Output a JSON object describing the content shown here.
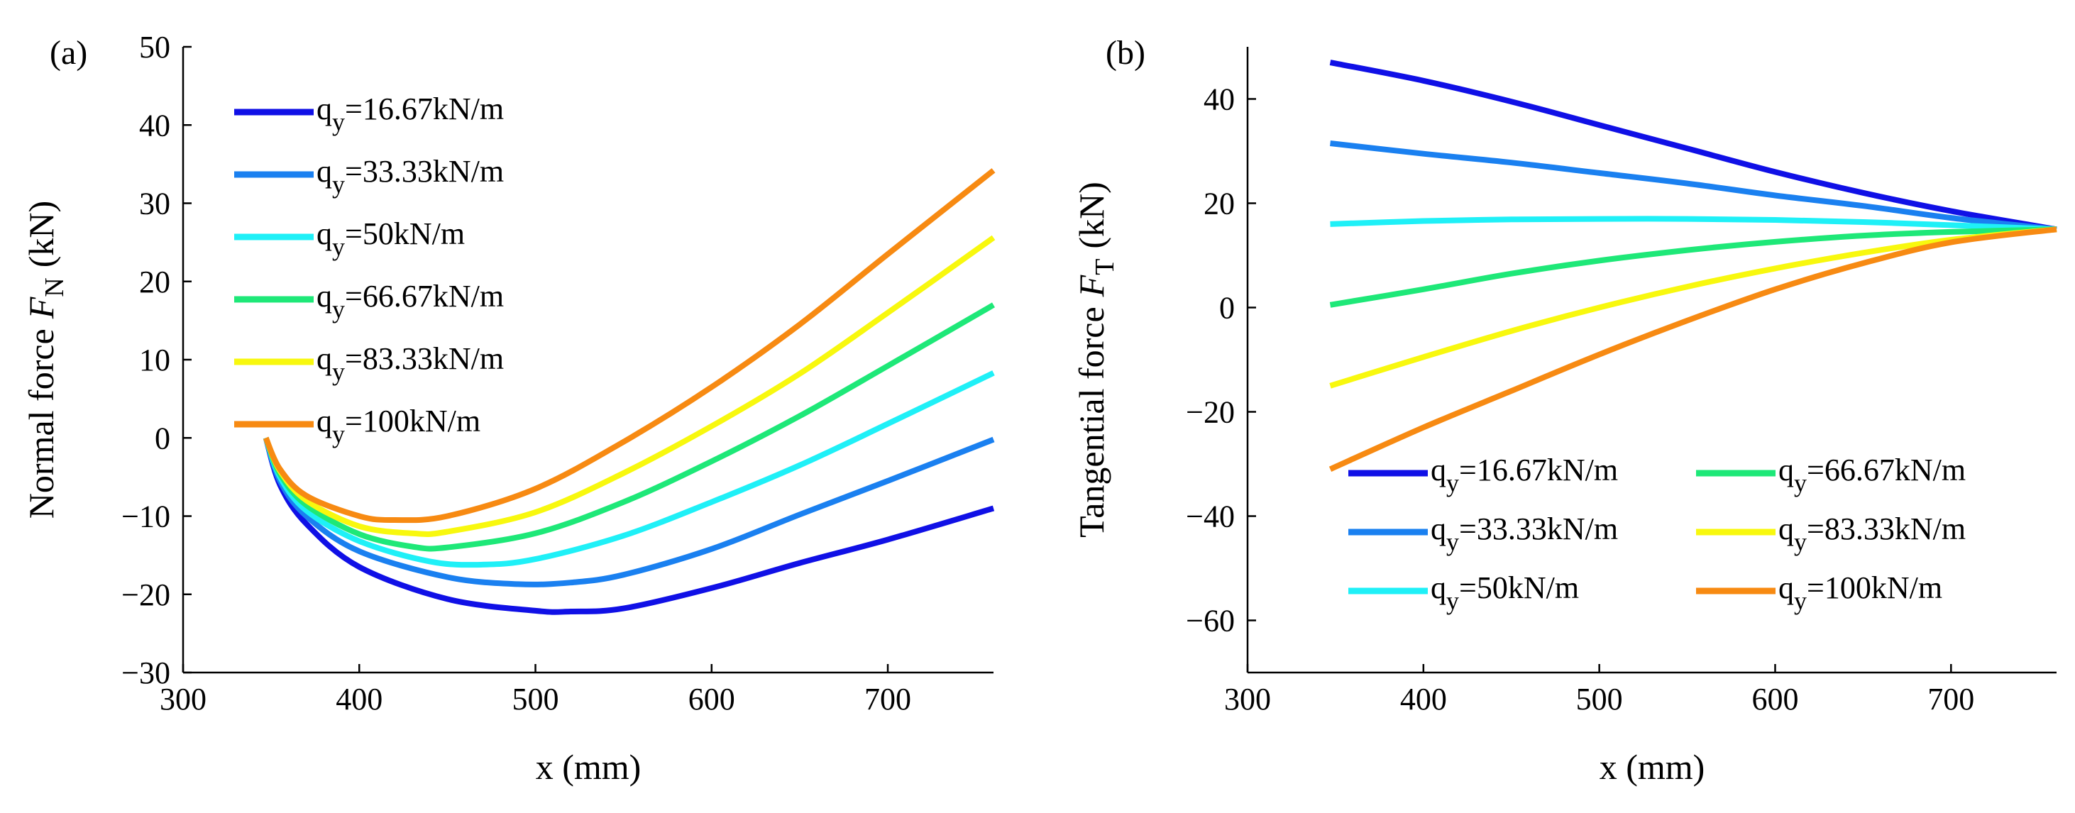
{
  "colors": [
    "#1010e6",
    "#1a80f0",
    "#1ff0f7",
    "#1ee878",
    "#f8f80e",
    "#f78a12"
  ],
  "chart_data": [
    {
      "type": "line",
      "panel": "(a)",
      "title": "",
      "xlabel": "x (mm)",
      "ylabel": "Normal force",
      "ylabel_symbol": "F",
      "ylabel_subscript": "N",
      "ylabel_unit": "(kN)",
      "xlim": [
        300,
        760
      ],
      "ylim": [
        -30,
        50
      ],
      "xticks": [
        300,
        400,
        500,
        600,
        700
      ],
      "yticks": [
        -30,
        -20,
        -10,
        0,
        10,
        20,
        30,
        40,
        50
      ],
      "tick_labels_x": [
        "300",
        "400",
        "500",
        "600",
        "700"
      ],
      "tick_labels_y": [
        "−30",
        "−20",
        "−10",
        "0",
        "10",
        "20",
        "30",
        "40",
        "50"
      ],
      "legend": "top-left, single column",
      "series": [
        {
          "name": "q_y=16.67kN/m",
          "label_main": "q",
          "label_sub": "y",
          "label_rest": "=16.67kN/m",
          "x": [
            347,
            355,
            370,
            400,
            450,
            500,
            520,
            550,
            600,
            650,
            700,
            760
          ],
          "y": [
            0,
            -6,
            -11,
            -16.5,
            -20.6,
            -22.1,
            -22.2,
            -21.8,
            -19.2,
            -16,
            -13,
            -9
          ]
        },
        {
          "name": "q_y=33.33kN/m",
          "label_main": "q",
          "label_sub": "y",
          "label_rest": "=33.33kN/m",
          "x": [
            347,
            355,
            370,
            400,
            450,
            490,
            520,
            550,
            600,
            650,
            700,
            760
          ],
          "y": [
            0,
            -5.5,
            -10,
            -14.5,
            -17.8,
            -18.7,
            -18.5,
            -17.5,
            -14.2,
            -9.8,
            -5.5,
            -0.2
          ]
        },
        {
          "name": "q_y=50kN/m",
          "label_main": "q",
          "label_sub": "y",
          "label_rest": "=50kN/m",
          "x": [
            347,
            355,
            370,
            400,
            440,
            470,
            500,
            550,
            600,
            650,
            700,
            760
          ],
          "y": [
            0,
            -5,
            -9.3,
            -13.2,
            -15.8,
            -16.2,
            -15.5,
            -12.5,
            -8.2,
            -3.5,
            1.8,
            8.3
          ]
        },
        {
          "name": "q_y=66.67kN/m",
          "label_main": "q",
          "label_sub": "y",
          "label_rest": "=66.67kN/m",
          "x": [
            347,
            355,
            370,
            400,
            430,
            450,
            500,
            550,
            600,
            650,
            700,
            760
          ],
          "y": [
            0,
            -4.6,
            -8.6,
            -12.3,
            -13.9,
            -14,
            -12.2,
            -8.2,
            -3,
            2.8,
            9.2,
            17
          ]
        },
        {
          "name": "q_y=83.33kN/m",
          "label_main": "q",
          "label_sub": "y",
          "label_rest": "=83.33kN/m",
          "x": [
            347,
            355,
            370,
            400,
            430,
            450,
            500,
            550,
            600,
            650,
            700,
            760
          ],
          "y": [
            0,
            -4.2,
            -8,
            -11.3,
            -12.2,
            -12,
            -9.5,
            -4.5,
            1.5,
            8.2,
            16,
            25.6
          ]
        },
        {
          "name": "q_y=100kN/m",
          "label_main": "q",
          "label_sub": "y",
          "label_rest": "=100kN/m",
          "x": [
            347,
            355,
            370,
            400,
            420,
            450,
            500,
            550,
            600,
            650,
            700,
            760
          ],
          "y": [
            0,
            -4,
            -7.4,
            -10,
            -10.5,
            -10,
            -6.5,
            -0.5,
            6.5,
            14.5,
            23.5,
            34.2
          ]
        }
      ]
    },
    {
      "type": "line",
      "panel": "(b)",
      "title": "",
      "xlabel": "x (mm)",
      "ylabel": "Tangential force",
      "ylabel_symbol": "F",
      "ylabel_subscript": "T",
      "ylabel_unit": "(kN)",
      "xlim": [
        300,
        760
      ],
      "ylim": [
        -70,
        50
      ],
      "xticks": [
        300,
        400,
        500,
        600,
        700
      ],
      "yticks": [
        -60,
        -40,
        -20,
        0,
        20,
        40
      ],
      "tick_labels_x": [
        "300",
        "400",
        "500",
        "600",
        "700"
      ],
      "tick_labels_y": [
        "−60",
        "−40",
        "−20",
        "0",
        "20",
        "40"
      ],
      "legend": "bottom, two columns",
      "series": [
        {
          "name": "q_y=16.67kN/m",
          "label_main": "q",
          "label_sub": "y",
          "label_rest": "=16.67kN/m",
          "x": [
            347,
            400,
            450,
            500,
            550,
            600,
            650,
            700,
            760
          ],
          "y": [
            47,
            43.5,
            39.5,
            35,
            30.5,
            26,
            22,
            18.5,
            15
          ]
        },
        {
          "name": "q_y=33.33kN/m",
          "label_main": "q",
          "label_sub": "y",
          "label_rest": "=33.33kN/m",
          "x": [
            347,
            400,
            450,
            500,
            550,
            600,
            650,
            700,
            760
          ],
          "y": [
            31.5,
            29.5,
            27.8,
            25.8,
            23.8,
            21.5,
            19.5,
            17.2,
            15
          ]
        },
        {
          "name": "q_y=50kN/m",
          "label_main": "q",
          "label_sub": "y",
          "label_rest": "=50kN/m",
          "x": [
            347,
            400,
            450,
            500,
            550,
            600,
            650,
            700,
            760
          ],
          "y": [
            16,
            16.6,
            16.9,
            17,
            17,
            16.8,
            16.4,
            15.8,
            15
          ]
        },
        {
          "name": "q_y=66.67kN/m",
          "label_main": "q",
          "label_sub": "y",
          "label_rest": "=66.67kN/m",
          "x": [
            347,
            400,
            450,
            500,
            550,
            600,
            650,
            700,
            760
          ],
          "y": [
            0.5,
            3.5,
            6.5,
            9,
            11,
            12.6,
            13.8,
            14.5,
            15
          ]
        },
        {
          "name": "q_y=83.33kN/m",
          "label_main": "q",
          "label_sub": "y",
          "label_rest": "=83.33kN/m",
          "x": [
            347,
            400,
            450,
            500,
            550,
            600,
            650,
            700,
            760
          ],
          "y": [
            -15,
            -9.5,
            -4.5,
            0,
            4,
            7.5,
            10.5,
            13,
            15
          ]
        },
        {
          "name": "q_y=100kN/m",
          "label_main": "q",
          "label_sub": "y",
          "label_rest": "=100kN/m",
          "x": [
            347,
            400,
            450,
            500,
            550,
            600,
            650,
            700,
            760
          ],
          "y": [
            -31,
            -23,
            -16,
            -9,
            -2.5,
            3.5,
            8.5,
            12.5,
            15
          ]
        }
      ]
    }
  ]
}
